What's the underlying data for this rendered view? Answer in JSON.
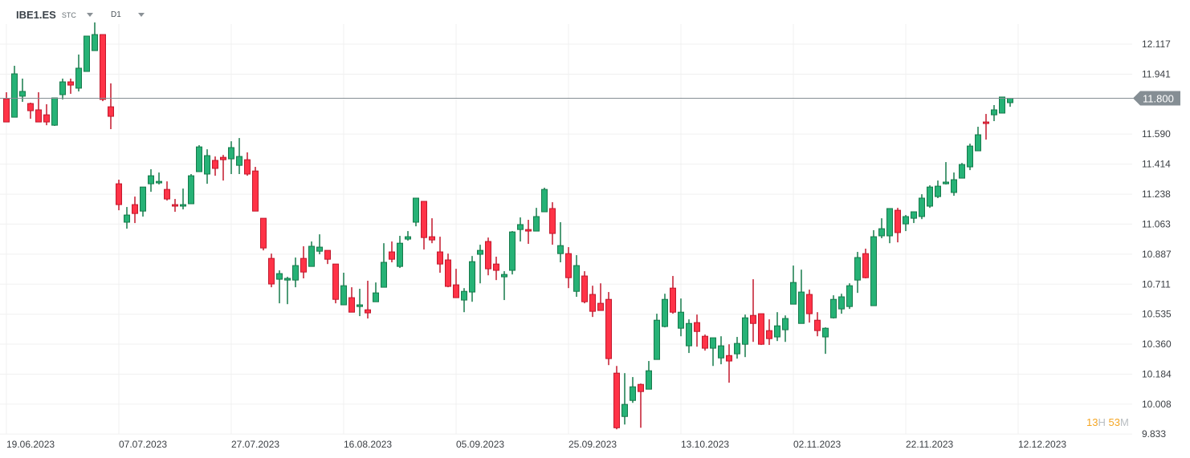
{
  "header": {
    "symbol": "IBE1.ES",
    "symbol_suffix": "STC",
    "timeframe": "D1"
  },
  "timer": {
    "hours": "13",
    "hours_unit": "H",
    "minutes": "53",
    "minutes_unit": "M"
  },
  "colors": {
    "up": "#26b276",
    "up_border": "#167a4b",
    "down": "#ff3347",
    "down_border": "#c2182c",
    "price_line": "#858e94",
    "timer_accent": "#f5a623"
  },
  "chart_data": {
    "type": "candlestick",
    "title": "",
    "ylim": [
      9.833,
      12.3
    ],
    "grid": true,
    "y_ticks": [
      "12.117",
      "11.941",
      "11.590",
      "11.414",
      "11.238",
      "11.063",
      "10.887",
      "10.711",
      "10.535",
      "10.360",
      "10.184",
      "10.008",
      "9.833"
    ],
    "x_ticks": [
      {
        "label": "19.06.2023",
        "index": 0
      },
      {
        "label": "07.07.2023",
        "index": 14
      },
      {
        "label": "27.07.2023",
        "index": 28
      },
      {
        "label": "16.08.2023",
        "index": 42
      },
      {
        "label": "05.09.2023",
        "index": 56
      },
      {
        "label": "25.09.2023",
        "index": 70
      },
      {
        "label": "13.10.2023",
        "index": 84
      },
      {
        "label": "02.11.2023",
        "index": 98
      },
      {
        "label": "22.11.2023",
        "index": 112
      },
      {
        "label": "12.12.2023",
        "index": 126
      }
    ],
    "current_price": "11.800",
    "ohlc_fields": [
      "open",
      "high",
      "low",
      "close"
    ],
    "candles": [
      [
        11.797,
        11.835,
        11.661,
        11.661
      ],
      [
        11.689,
        11.99,
        11.689,
        11.943
      ],
      [
        11.812,
        11.915,
        11.779,
        11.84
      ],
      [
        11.769,
        11.774,
        11.68,
        11.727
      ],
      [
        11.732,
        11.835,
        11.661,
        11.661
      ],
      [
        11.703,
        11.765,
        11.642,
        11.661
      ],
      [
        11.642,
        11.802,
        11.638,
        11.802
      ],
      [
        11.821,
        11.915,
        11.793,
        11.896
      ],
      [
        11.896,
        11.915,
        11.826,
        11.877
      ],
      [
        11.859,
        12.056,
        11.84,
        11.976
      ],
      [
        11.957,
        12.164,
        11.957,
        12.164
      ],
      [
        12.079,
        12.244,
        12.079,
        12.173
      ],
      [
        12.173,
        12.173,
        11.783,
        11.793
      ],
      [
        11.75,
        11.887,
        11.619,
        11.694
      ],
      [
        11.299,
        11.323,
        11.144,
        11.177
      ],
      [
        11.074,
        11.163,
        11.036,
        11.116
      ],
      [
        11.177,
        11.224,
        11.069,
        11.125
      ],
      [
        11.139,
        11.28,
        11.107,
        11.28
      ],
      [
        11.299,
        11.384,
        11.252,
        11.346
      ],
      [
        11.304,
        11.365,
        11.295,
        11.313
      ],
      [
        11.266,
        11.313,
        11.201,
        11.21
      ],
      [
        11.177,
        11.21,
        11.135,
        11.168
      ],
      [
        11.168,
        11.271,
        11.149,
        11.177
      ],
      [
        11.182,
        11.356,
        11.182,
        11.346
      ],
      [
        11.37,
        11.525,
        11.37,
        11.515
      ],
      [
        11.356,
        11.501,
        11.299,
        11.464
      ],
      [
        11.436,
        11.459,
        11.346,
        11.389
      ],
      [
        11.454,
        11.468,
        11.318,
        11.44
      ],
      [
        11.445,
        11.548,
        11.356,
        11.511
      ],
      [
        11.407,
        11.567,
        11.356,
        11.459
      ],
      [
        11.44,
        11.483,
        11.346,
        11.356
      ],
      [
        11.374,
        11.398,
        11.139,
        11.139
      ],
      [
        11.097,
        11.097,
        10.909,
        10.923
      ],
      [
        10.862,
        10.89,
        10.693,
        10.712
      ],
      [
        10.74,
        10.792,
        10.599,
        10.773
      ],
      [
        10.735,
        10.754,
        10.594,
        10.745
      ],
      [
        10.735,
        10.867,
        10.693,
        10.82
      ],
      [
        10.862,
        10.933,
        10.745,
        10.782
      ],
      [
        10.815,
        10.961,
        10.815,
        10.933
      ],
      [
        10.904,
        11.003,
        10.886,
        10.928
      ],
      [
        10.909,
        10.909,
        10.829,
        10.857
      ],
      [
        10.829,
        10.829,
        10.599,
        10.622
      ],
      [
        10.59,
        10.778,
        10.59,
        10.702
      ],
      [
        10.632,
        10.693,
        10.547,
        10.547
      ],
      [
        10.58,
        10.684,
        10.524,
        10.59
      ],
      [
        10.561,
        10.731,
        10.51,
        10.543
      ],
      [
        10.608,
        10.721,
        10.608,
        10.66
      ],
      [
        10.693,
        10.951,
        10.693,
        10.839
      ],
      [
        10.9,
        10.961,
        10.839,
        10.857
      ],
      [
        10.815,
        10.994,
        10.806,
        10.951
      ],
      [
        10.975,
        11.022,
        10.966,
        10.989
      ],
      [
        11.074,
        11.215,
        11.05,
        11.215
      ],
      [
        11.196,
        11.196,
        10.914,
        10.984
      ],
      [
        10.989,
        11.097,
        10.951,
        10.97
      ],
      [
        10.9,
        10.989,
        10.778,
        10.829
      ],
      [
        10.853,
        10.89,
        10.693,
        10.698
      ],
      [
        10.707,
        10.801,
        10.632,
        10.632
      ],
      [
        10.618,
        10.688,
        10.547,
        10.669
      ],
      [
        10.665,
        10.876,
        10.608,
        10.843
      ],
      [
        10.886,
        10.942,
        10.716,
        10.909
      ],
      [
        10.961,
        10.984,
        10.763,
        10.801
      ],
      [
        10.829,
        10.872,
        10.735,
        10.792
      ],
      [
        10.754,
        10.787,
        10.618,
        10.768
      ],
      [
        10.792,
        11.022,
        10.768,
        11.017
      ],
      [
        11.031,
        11.102,
        10.961,
        11.06
      ],
      [
        11.031,
        11.088,
        10.947,
        11.022
      ],
      [
        11.022,
        11.158,
        11.022,
        11.107
      ],
      [
        11.135,
        11.276,
        11.135,
        11.266
      ],
      [
        11.154,
        11.191,
        10.942,
        11.008
      ],
      [
        10.89,
        11.074,
        10.839,
        10.937
      ],
      [
        10.89,
        10.928,
        10.688,
        10.749
      ],
      [
        10.669,
        10.881,
        10.637,
        10.82
      ],
      [
        10.759,
        10.787,
        10.599,
        10.608
      ],
      [
        10.651,
        10.702,
        10.519,
        10.552
      ],
      [
        10.599,
        10.716,
        10.557,
        10.557
      ],
      [
        10.622,
        10.665,
        10.237,
        10.275
      ],
      [
        10.19,
        10.232,
        9.861,
        9.87
      ],
      [
        9.936,
        10.19,
        9.889,
        10.007
      ],
      [
        10.03,
        10.167,
        10.016,
        10.11
      ],
      [
        10.124,
        10.129,
        9.87,
        10.082
      ],
      [
        10.096,
        10.261,
        10.096,
        10.204
      ],
      [
        10.27,
        10.538,
        10.27,
        10.5
      ],
      [
        10.463,
        10.655,
        10.458,
        10.622
      ],
      [
        10.688,
        10.759,
        10.538,
        10.547
      ],
      [
        10.453,
        10.627,
        10.406,
        10.547
      ],
      [
        10.35,
        10.505,
        10.308,
        10.481
      ],
      [
        10.486,
        10.533,
        10.345,
        10.434
      ],
      [
        10.406,
        10.416,
        10.322,
        10.336
      ],
      [
        10.336,
        10.397,
        10.232,
        10.397
      ],
      [
        10.279,
        10.406,
        10.242,
        10.35
      ],
      [
        10.293,
        10.359,
        10.134,
        10.261
      ],
      [
        10.303,
        10.402,
        10.275,
        10.364
      ],
      [
        10.359,
        10.533,
        10.284,
        10.514
      ],
      [
        10.528,
        10.74,
        10.373,
        10.481
      ],
      [
        10.538,
        10.538,
        10.355,
        10.359
      ],
      [
        10.439,
        10.505,
        10.355,
        10.392
      ],
      [
        10.402,
        10.547,
        10.378,
        10.467
      ],
      [
        10.444,
        10.528,
        10.373,
        10.51
      ],
      [
        10.594,
        10.82,
        10.594,
        10.721
      ],
      [
        10.481,
        10.796,
        10.481,
        10.665
      ],
      [
        10.651,
        10.679,
        10.486,
        10.538
      ],
      [
        10.5,
        10.547,
        10.406,
        10.439
      ],
      [
        10.402,
        10.458,
        10.303,
        10.453
      ],
      [
        10.514,
        10.646,
        10.51,
        10.622
      ],
      [
        10.566,
        10.655,
        10.538,
        10.637
      ],
      [
        10.58,
        10.716,
        10.566,
        10.702
      ],
      [
        10.735,
        10.9,
        10.66,
        10.867
      ],
      [
        10.89,
        10.919,
        10.745,
        10.749
      ],
      [
        10.585,
        11.027,
        10.585,
        10.989
      ],
      [
        10.994,
        11.097,
        10.98,
        11.036
      ],
      [
        10.994,
        11.154,
        10.951,
        11.154
      ],
      [
        11.144,
        11.158,
        10.956,
        11.013
      ],
      [
        11.064,
        11.116,
        11.022,
        11.107
      ],
      [
        11.097,
        11.135,
        11.069,
        11.135
      ],
      [
        11.107,
        11.238,
        11.092,
        11.215
      ],
      [
        11.168,
        11.29,
        11.158,
        11.28
      ],
      [
        11.224,
        11.318,
        11.215,
        11.285
      ],
      [
        11.299,
        11.426,
        11.295,
        11.309
      ],
      [
        11.248,
        11.365,
        11.229,
        11.323
      ],
      [
        11.332,
        11.421,
        11.332,
        11.412
      ],
      [
        11.398,
        11.534,
        11.379,
        11.52
      ],
      [
        11.492,
        11.633,
        11.492,
        11.586
      ],
      [
        11.661,
        11.708,
        11.558,
        11.652
      ],
      [
        11.703,
        11.76,
        11.666,
        11.732
      ],
      [
        11.713,
        11.807,
        11.713,
        11.807
      ],
      [
        11.774,
        11.802,
        11.75,
        11.8
      ]
    ]
  }
}
